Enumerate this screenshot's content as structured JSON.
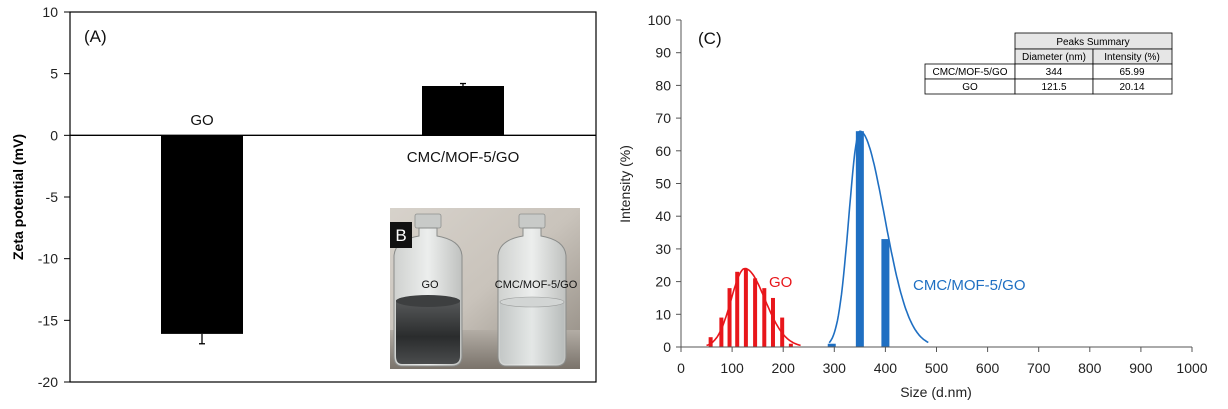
{
  "chart_data": [
    {
      "panel": "(A)",
      "type": "bar",
      "categories": [
        "GO",
        "CMC/MOF-5/GO"
      ],
      "values": [
        -16.1,
        4.0
      ],
      "errors": [
        0.8,
        0.2
      ],
      "bar_color": "#000000",
      "ylabel": "Zeta potential (mV)",
      "ylim": [
        -20,
        10
      ],
      "yticks": [
        "10",
        "5",
        "0",
        "-5",
        "-10",
        "-15",
        "-20"
      ],
      "grid": false,
      "inset": {
        "label": "B",
        "vial_labels": [
          "GO",
          "CMC/MOF-5/GO"
        ]
      }
    },
    {
      "panel": "(C)",
      "type": "bar+line",
      "xlabel": "Size (d.nm)",
      "ylabel": "Intensity (%)",
      "xlim": [
        0,
        1000
      ],
      "ylim": [
        0,
        100
      ],
      "xticks": [
        "0",
        "100",
        "200",
        "300",
        "400",
        "500",
        "600",
        "700",
        "800",
        "900",
        "1000"
      ],
      "yticks": [
        "0",
        "10",
        "20",
        "30",
        "40",
        "50",
        "60",
        "70",
        "80",
        "90",
        "100"
      ],
      "series": [
        {
          "name": "GO",
          "color": "#e8161b",
          "bars": {
            "x": [
              58,
              79,
              95,
              110,
              127,
              145,
              163,
              180,
              198,
              215
            ],
            "values": [
              3,
              9,
              18,
              23,
              24,
              21,
              18,
              15,
              9,
              1
            ]
          },
          "fit": {
            "peak_x": 125,
            "peak_y": 24,
            "left_x": 50,
            "right_x": 235
          }
        },
        {
          "name": "CMC/MOF-5/GO",
          "color": "#1f6fc2",
          "bars": {
            "x": [
              295,
              350,
              400
            ],
            "values": [
              1,
              66,
              33
            ]
          },
          "fit": {
            "peak_x": 350,
            "peak_y": 66,
            "left_x": 290,
            "right_x": 485
          }
        }
      ],
      "table": {
        "title": "Peaks Summary",
        "headers": [
          "",
          "Diameter (nm)",
          "Intensity (%)"
        ],
        "rows": [
          [
            "CMC/MOF-5/GO",
            "344",
            "65.99"
          ],
          [
            "GO",
            "121.5",
            "20.14"
          ]
        ]
      }
    }
  ]
}
